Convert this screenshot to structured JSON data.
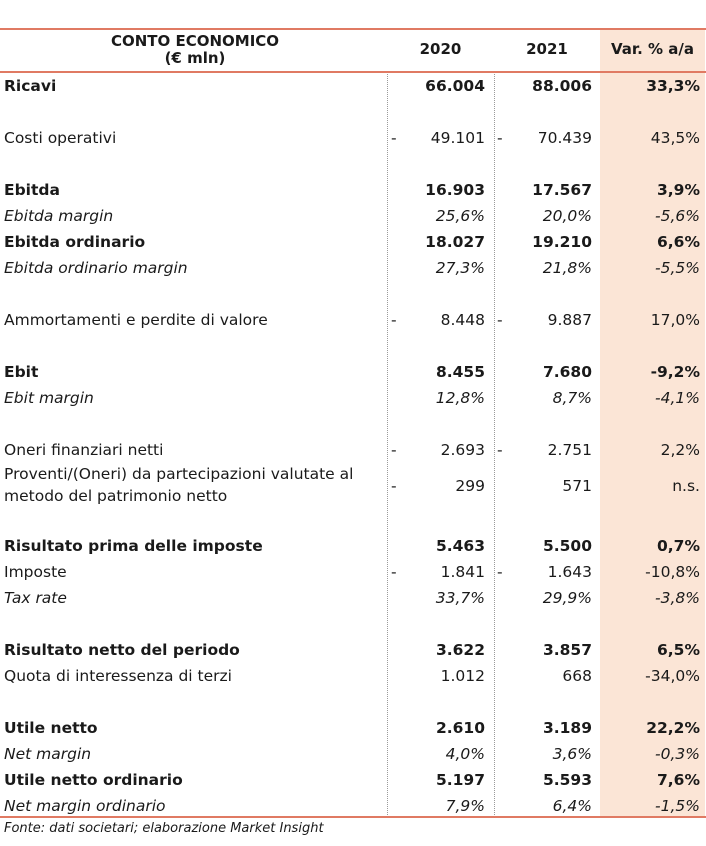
{
  "header": {
    "title_line1": "CONTO ECONOMICO",
    "title_line2": "(€ mln)",
    "col_2020": "2020",
    "col_2021": "2021",
    "col_var": "Var. % a/a"
  },
  "rows": [
    {
      "label": "Ricavi",
      "v2020": "66.004",
      "v2021": "88.006",
      "var": "33,3%",
      "neg2020": "",
      "neg2021": ""
    },
    {
      "label": "Costi operativi",
      "v2020": "49.101",
      "v2021": "70.439",
      "var": "43,5%",
      "neg2020": "-",
      "neg2021": "-"
    },
    {
      "label": "Ebitda",
      "v2020": "16.903",
      "v2021": "17.567",
      "var": "3,9%",
      "neg2020": "",
      "neg2021": ""
    },
    {
      "label": "Ebitda margin",
      "v2020": "25,6%",
      "v2021": "20,0%",
      "var": "-5,6%",
      "neg2020": "",
      "neg2021": ""
    },
    {
      "label": "Ebitda ordinario",
      "v2020": "18.027",
      "v2021": "19.210",
      "var": "6,6%",
      "neg2020": "",
      "neg2021": ""
    },
    {
      "label": "Ebitda ordinario margin",
      "v2020": "27,3%",
      "v2021": "21,8%",
      "var": "-5,5%",
      "neg2020": "",
      "neg2021": ""
    },
    {
      "label": "Ammortamenti e perdite di valore",
      "v2020": "8.448",
      "v2021": "9.887",
      "var": "17,0%",
      "neg2020": "-",
      "neg2021": "-"
    },
    {
      "label": "Ebit",
      "v2020": "8.455",
      "v2021": "7.680",
      "var": "-9,2%",
      "neg2020": "",
      "neg2021": ""
    },
    {
      "label": "Ebit margin",
      "v2020": "12,8%",
      "v2021": "8,7%",
      "var": "-4,1%",
      "neg2020": "",
      "neg2021": ""
    },
    {
      "label": "Oneri finanziari netti",
      "v2020": "2.693",
      "v2021": "2.751",
      "var": "2,2%",
      "neg2020": "-",
      "neg2021": "-"
    },
    {
      "label": "Proventi/(Oneri) da partecipazioni valutate al metodo del patrimonio netto",
      "v2020": "299",
      "v2021": "571",
      "var": "n.s.",
      "neg2020": "-",
      "neg2021": ""
    },
    {
      "label": "Risultato prima delle imposte",
      "v2020": "5.463",
      "v2021": "5.500",
      "var": "0,7%",
      "neg2020": "",
      "neg2021": ""
    },
    {
      "label": "Imposte",
      "v2020": "1.841",
      "v2021": "1.643",
      "var": "-10,8%",
      "neg2020": "-",
      "neg2021": "-"
    },
    {
      "label": "Tax rate",
      "v2020": "33,7%",
      "v2021": "29,9%",
      "var": "-3,8%",
      "neg2020": "",
      "neg2021": ""
    },
    {
      "label": "Risultato netto del periodo",
      "v2020": "3.622",
      "v2021": "3.857",
      "var": "6,5%",
      "neg2020": "",
      "neg2021": ""
    },
    {
      "label": "Quota di interessenza di terzi",
      "v2020": "1.012",
      "v2021": "668",
      "var": "-34,0%",
      "neg2020": "",
      "neg2021": ""
    },
    {
      "label": "Utile netto",
      "v2020": "2.610",
      "v2021": "3.189",
      "var": "22,2%",
      "neg2020": "",
      "neg2021": ""
    },
    {
      "label": "Net margin",
      "v2020": "4,0%",
      "v2021": "3,6%",
      "var": "-0,3%",
      "neg2020": "",
      "neg2021": ""
    },
    {
      "label": "Utile netto ordinario",
      "v2020": "5.197",
      "v2021": "5.593",
      "var": "7,6%",
      "neg2020": "",
      "neg2021": ""
    },
    {
      "label": "Net margin ordinario",
      "v2020": "7,9%",
      "v2021": "6,4%",
      "var": "-1,5%",
      "neg2020": "",
      "neg2021": ""
    }
  ],
  "footer": "Fonte: dati societari; elaborazione Market Insight"
}
